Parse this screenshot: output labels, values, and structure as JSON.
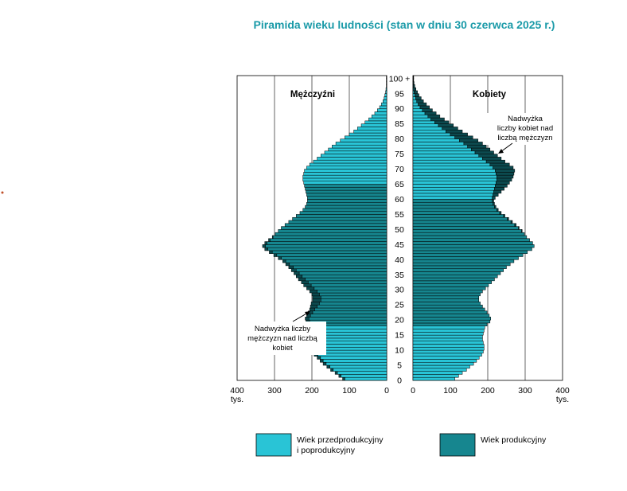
{
  "chart_data": {
    "type": "population-pyramid",
    "title": "Piramida wieku ludności (stan w dniu 30 czerwca 2025 r.)",
    "panels": {
      "left": "Mężczyźni",
      "right": "Kobiety"
    },
    "unit_label": "tys.",
    "xlim": [
      0,
      400
    ],
    "x_ticks": [
      400,
      300,
      200,
      100,
      0
    ],
    "x_ticks_right": [
      0,
      100,
      200,
      300,
      400
    ],
    "age_ticks": [
      "0",
      "5",
      "10",
      "15",
      "20",
      "25",
      "30",
      "35",
      "40",
      "45",
      "50",
      "55",
      "60",
      "65",
      "70",
      "75",
      "80",
      "85",
      "90",
      "95",
      "100 +"
    ],
    "age_groups": {
      "pre_working": [
        0,
        17
      ],
      "working_men": [
        18,
        64
      ],
      "working_women": [
        18,
        59
      ]
    },
    "series": [
      {
        "name": "Mężczyźni",
        "values": [
          118,
          128,
          138,
          150,
          160,
          170,
          178,
          186,
          194,
          198,
          200,
          200,
          198,
          196,
          196,
          198,
          200,
          202,
          208,
          216,
          218,
          214,
          210,
          206,
          204,
          202,
          198,
          198,
          200,
          206,
          214,
          222,
          228,
          236,
          242,
          248,
          255,
          262,
          270,
          278,
          290,
          302,
          314,
          326,
          332,
          326,
          316,
          306,
          298,
          290,
          282,
          272,
          262,
          252,
          242,
          232,
          224,
          218,
          214,
          212,
          212,
          214,
          216,
          218,
          220,
          222,
          224,
          224,
          222,
          220,
          214,
          206,
          196,
          186,
          176,
          166,
          156,
          146,
          136,
          124,
          112,
          100,
          88,
          78,
          68,
          58,
          48,
          40,
          32,
          25,
          19,
          14,
          10,
          7,
          5,
          3,
          2,
          1,
          1,
          1,
          1
        ]
      },
      {
        "name": "Kobiety",
        "values": [
          112,
          122,
          132,
          143,
          152,
          162,
          170,
          177,
          184,
          188,
          190,
          190,
          188,
          186,
          186,
          188,
          190,
          192,
          198,
          206,
          208,
          204,
          198,
          192,
          186,
          180,
          176,
          176,
          180,
          186,
          194,
          202,
          210,
          218,
          226,
          234,
          242,
          250,
          260,
          270,
          282,
          294,
          306,
          318,
          324,
          320,
          312,
          304,
          298,
          292,
          284,
          276,
          266,
          256,
          246,
          236,
          228,
          222,
          218,
          216,
          220,
          228,
          236,
          244,
          252,
          258,
          264,
          268,
          270,
          272,
          268,
          258,
          246,
          236,
          226,
          216,
          206,
          196,
          186,
          174,
          160,
          146,
          132,
          120,
          108,
          96,
          84,
          72,
          62,
          52,
          44,
          36,
          28,
          22,
          16,
          12,
          8,
          5,
          3,
          2,
          2
        ]
      }
    ],
    "series_working_share": [
      {
        "name": "Mężczyźni",
        "values": [
          0,
          0,
          0,
          0,
          0,
          0,
          0,
          0,
          0,
          0,
          0,
          0,
          0,
          0,
          0,
          0,
          0,
          0,
          196,
          204,
          208,
          206,
          202,
          198,
          196,
          194,
          192,
          192,
          194,
          200,
          208,
          216,
          222,
          230,
          236,
          242,
          249,
          256,
          264,
          272,
          284,
          296,
          308,
          320,
          326,
          320,
          310,
          300,
          292,
          284,
          276,
          266,
          256,
          246,
          236,
          226,
          218,
          212,
          208,
          206,
          206,
          208,
          210,
          212,
          214,
          0,
          0,
          0,
          0,
          0,
          0,
          0,
          0,
          0,
          0,
          0,
          0,
          0,
          0,
          0,
          0,
          0,
          0,
          0,
          0,
          0,
          0,
          0,
          0,
          0,
          0,
          0,
          0,
          0,
          0,
          0,
          0,
          0,
          0,
          0,
          0
        ]
      },
      {
        "name": "Kobiety",
        "values": [
          0,
          0,
          0,
          0,
          0,
          0,
          0,
          0,
          0,
          0,
          0,
          0,
          0,
          0,
          0,
          0,
          0,
          0,
          188,
          196,
          198,
          194,
          190,
          186,
          180,
          174,
          170,
          170,
          174,
          180,
          188,
          196,
          204,
          212,
          220,
          228,
          236,
          244,
          254,
          264,
          276,
          288,
          300,
          312,
          318,
          314,
          306,
          298,
          292,
          286,
          278,
          270,
          260,
          250,
          240,
          230,
          222,
          216,
          212,
          210,
          0,
          0,
          0,
          0,
          0,
          0,
          0,
          0,
          0,
          0,
          0,
          0,
          0,
          0,
          0,
          0,
          0,
          0,
          0,
          0,
          0,
          0,
          0,
          0,
          0,
          0,
          0,
          0,
          0,
          0,
          0,
          0,
          0,
          0,
          0,
          0,
          0,
          0,
          0,
          0,
          0
        ]
      }
    ],
    "annotations": {
      "men_surplus": [
        "Nadwyżka liczby",
        "mężczyzn nad liczbą",
        "kobiet"
      ],
      "women_surplus": [
        "Nadwyżka",
        "liczby kobiet nad",
        "liczbą mężczyzn"
      ]
    },
    "legend": [
      {
        "label_lines": [
          "Wiek przedprodukcyjny",
          "i poprodukcyjny"
        ],
        "color": "#29c4d6"
      },
      {
        "label_lines": [
          "Wiek produkcyjny"
        ],
        "color": "#16868f"
      }
    ],
    "colors": {
      "title": "#1a9aa8",
      "light": "#29c4d6",
      "dark": "#16868f",
      "surplus": "#0c4a4f",
      "outline": "#000000"
    }
  }
}
